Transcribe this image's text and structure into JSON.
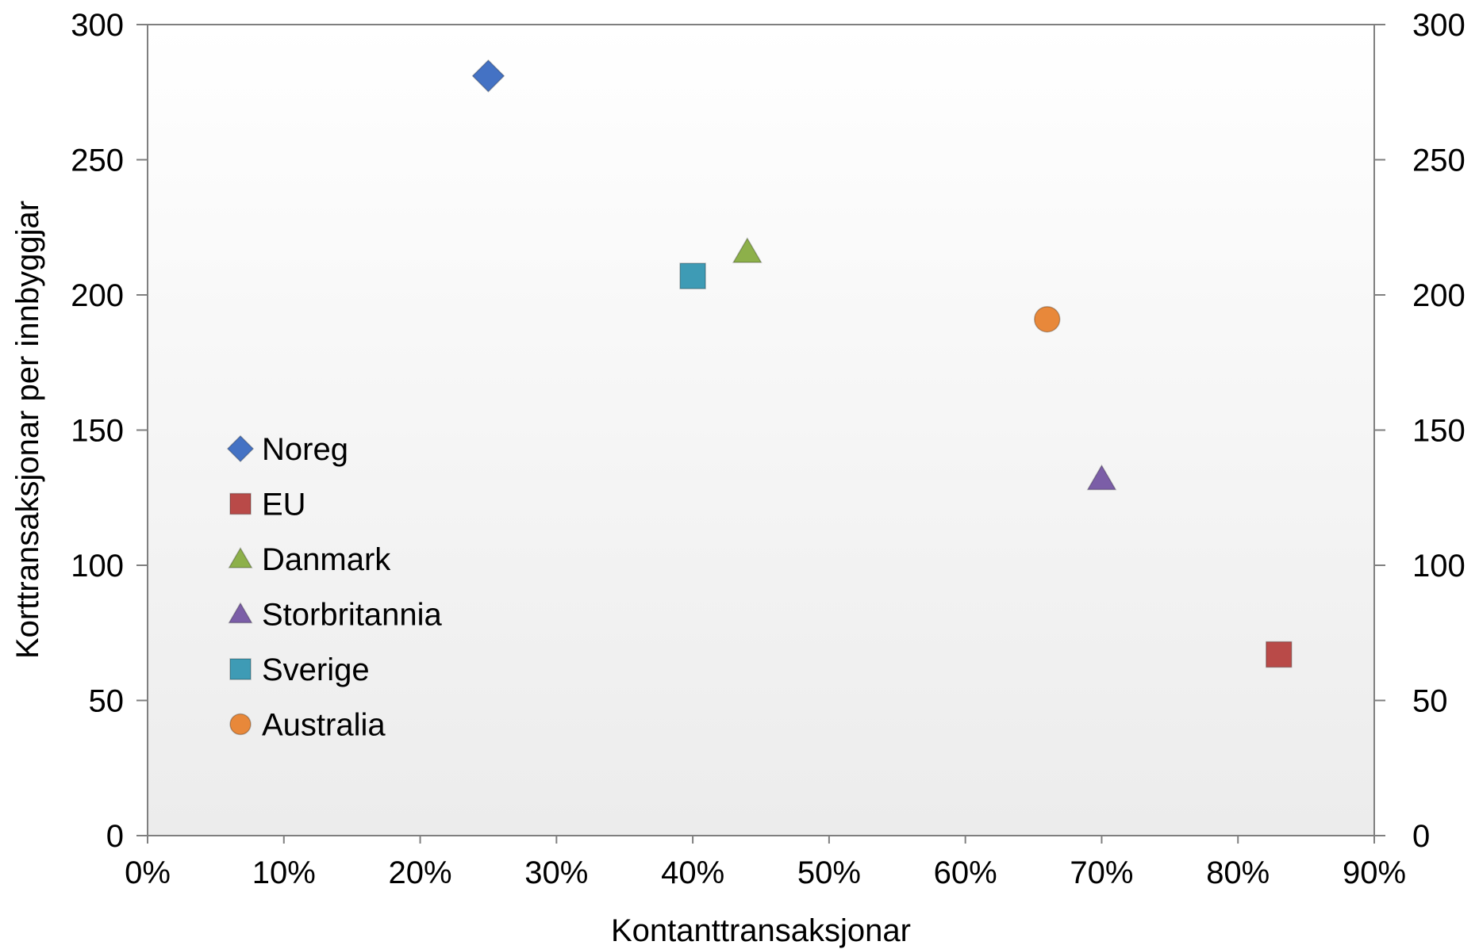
{
  "chart_data": {
    "type": "scatter",
    "xlabel": "Kontanttransaksjonar",
    "ylabel": "Korttransaksjonar per innbyggjar",
    "xlim": [
      0,
      90
    ],
    "ylim": [
      0,
      300
    ],
    "x_ticks": [
      "0%",
      "10%",
      "20%",
      "30%",
      "40%",
      "50%",
      "60%",
      "70%",
      "80%",
      "90%"
    ],
    "y_ticks": [
      "0",
      "50",
      "100",
      "150",
      "200",
      "250",
      "300"
    ],
    "y_right_ticks": [
      "0",
      "50",
      "100",
      "150",
      "200",
      "250",
      "300"
    ],
    "grid": false,
    "legend_position": "left",
    "series": [
      {
        "name": "Noreg",
        "marker": "diamond",
        "color": "#4472C4",
        "points": [
          {
            "x": 25,
            "y": 281
          }
        ]
      },
      {
        "name": "EU",
        "marker": "square",
        "color": "#B94A48",
        "points": [
          {
            "x": 83,
            "y": 67
          }
        ]
      },
      {
        "name": "Danmark",
        "marker": "triangle",
        "color": "#8DB04A",
        "points": [
          {
            "x": 44,
            "y": 216
          }
        ]
      },
      {
        "name": "Storbritannia",
        "marker": "triangle",
        "color": "#7B5EA7",
        "points": [
          {
            "x": 70,
            "y": 132
          }
        ]
      },
      {
        "name": "Sverige",
        "marker": "square",
        "color": "#3E9BB5",
        "points": [
          {
            "x": 40,
            "y": 207
          }
        ]
      },
      {
        "name": "Australia",
        "marker": "circle",
        "color": "#E8883A",
        "points": [
          {
            "x": 66,
            "y": 191
          }
        ]
      }
    ]
  }
}
